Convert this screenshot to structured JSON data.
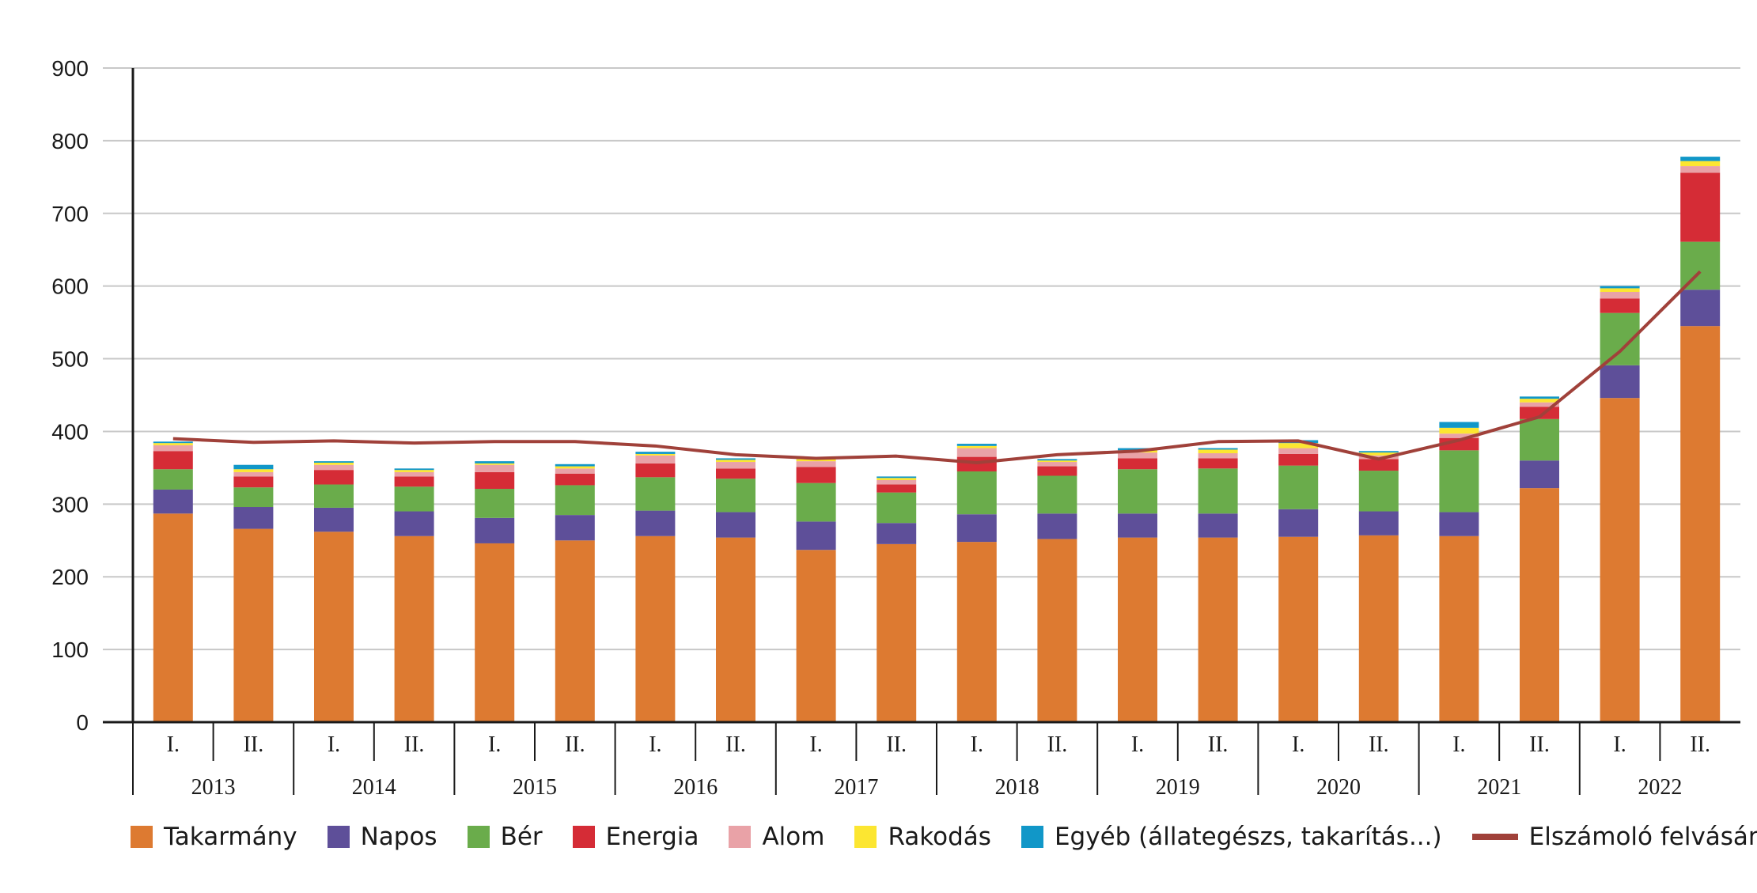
{
  "chart_data": {
    "type": "bar",
    "stacked": true,
    "ylim": [
      0,
      900
    ],
    "yticks": [
      0,
      100,
      200,
      300,
      400,
      500,
      600,
      700,
      800,
      900
    ],
    "grid": true,
    "legend_position": "bottom",
    "categories": [
      "I.",
      "II.",
      "I.",
      "II.",
      "I.",
      "II.",
      "I.",
      "II.",
      "I.",
      "II.",
      "I.",
      "II.",
      "I.",
      "II.",
      "I.",
      "II.",
      "I.",
      "II.",
      "I.",
      "II."
    ],
    "years": [
      "2013",
      "2014",
      "2015",
      "2016",
      "2017",
      "2018",
      "2019",
      "2020",
      "2021",
      "2022"
    ],
    "series": [
      {
        "name": "Takarmány",
        "color": "#DD7A31",
        "values": [
          287,
          266,
          262,
          256,
          246,
          250,
          256,
          254,
          237,
          245,
          248,
          252,
          254,
          254,
          255,
          257,
          256,
          322,
          446,
          545
        ]
      },
      {
        "name": "Napos",
        "color": "#5E4F99",
        "values": [
          33,
          30,
          33,
          34,
          35,
          35,
          35,
          35,
          39,
          29,
          38,
          35,
          33,
          33,
          38,
          33,
          33,
          38,
          45,
          50
        ]
      },
      {
        "name": "Bér",
        "color": "#6AAC4B",
        "values": [
          28,
          27,
          32,
          34,
          40,
          41,
          46,
          46,
          53,
          42,
          59,
          52,
          61,
          62,
          60,
          56,
          85,
          57,
          72,
          66
        ]
      },
      {
        "name": "Energia",
        "color": "#D52C36",
        "values": [
          25,
          15,
          20,
          14,
          23,
          16,
          19,
          14,
          22,
          11,
          20,
          13,
          15,
          14,
          16,
          16,
          17,
          17,
          20,
          95
        ]
      },
      {
        "name": "Alom",
        "color": "#E9A2A7",
        "values": [
          8,
          6,
          7,
          6,
          10,
          7,
          11,
          9,
          8,
          6,
          12,
          6,
          8,
          7,
          8,
          5,
          6,
          6,
          9,
          9
        ]
      },
      {
        "name": "Rakodás",
        "color": "#FCE631",
        "values": [
          3,
          4,
          3,
          3,
          2,
          3,
          2,
          3,
          3,
          3,
          3,
          2,
          3,
          5,
          7,
          4,
          8,
          5,
          5,
          7
        ]
      },
      {
        "name": "Egyéb (állategészs, takarítás...)",
        "color": "#1197C8",
        "values": [
          2,
          6,
          2,
          2,
          3,
          3,
          3,
          2,
          3,
          2,
          3,
          2,
          3,
          2,
          4,
          2,
          8,
          3,
          3,
          6
        ]
      }
    ],
    "line": {
      "name": "Elszámoló felvásárlási ár",
      "color": "#A0413A",
      "values": [
        390,
        385,
        387,
        384,
        386,
        386,
        380,
        368,
        363,
        366,
        357,
        368,
        373,
        386,
        387,
        362,
        388,
        420,
        510,
        620
      ]
    }
  }
}
